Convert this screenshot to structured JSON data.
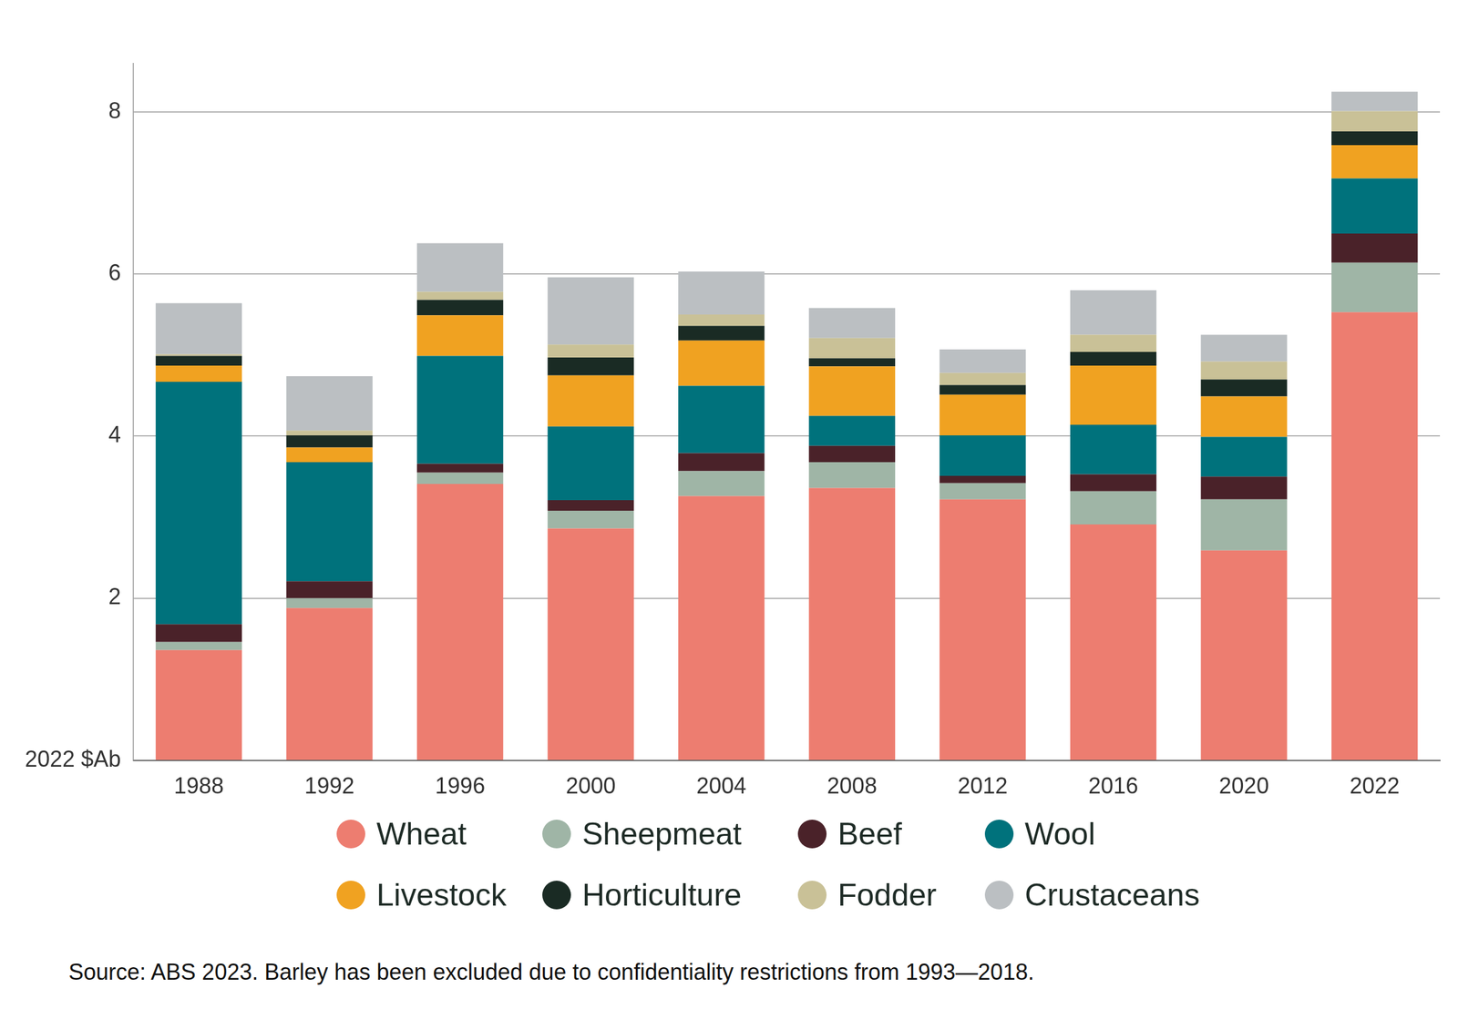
{
  "chart_data": {
    "type": "bar",
    "stacked": true,
    "grid": true,
    "legend": "bottom",
    "caption": "Source: ABS 2023. Barley has been excluded due to confidentiality restrictions from 1993—2018.",
    "categories": [
      "1988",
      "1992",
      "1996",
      "2000",
      "2004",
      "2008",
      "2012",
      "2016",
      "2020",
      "2022"
    ],
    "ylim": [
      0,
      8.6
    ],
    "yticks": [
      {
        "value": 0,
        "label": "2022 $Ab"
      },
      2,
      4,
      6,
      8
    ],
    "series": [
      {
        "name": "Wheat",
        "color": "#ed7d70",
        "values": [
          1.36,
          1.88,
          3.41,
          2.86,
          3.26,
          3.36,
          3.22,
          2.91,
          2.59,
          5.53
        ]
      },
      {
        "name": "Sheepmeat",
        "color": "#9fb5a6",
        "values": [
          0.1,
          0.12,
          0.14,
          0.22,
          0.31,
          0.32,
          0.2,
          0.41,
          0.63,
          0.61
        ]
      },
      {
        "name": "Beef",
        "color": "#4a2229",
        "values": [
          0.22,
          0.21,
          0.11,
          0.13,
          0.22,
          0.2,
          0.09,
          0.21,
          0.28,
          0.36
        ]
      },
      {
        "name": "Wool",
        "color": "#00727c",
        "values": [
          2.99,
          1.47,
          1.33,
          0.91,
          0.83,
          0.37,
          0.5,
          0.61,
          0.49,
          0.68
        ]
      },
      {
        "name": "Livestock",
        "color": "#f0a221",
        "values": [
          0.2,
          0.18,
          0.5,
          0.63,
          0.56,
          0.61,
          0.5,
          0.73,
          0.5,
          0.41
        ]
      },
      {
        "name": "Horticulture",
        "color": "#1a2b24",
        "values": [
          0.12,
          0.15,
          0.19,
          0.22,
          0.18,
          0.1,
          0.12,
          0.17,
          0.21,
          0.17
        ]
      },
      {
        "name": "Fodder",
        "color": "#c9c197",
        "values": [
          0.02,
          0.06,
          0.1,
          0.16,
          0.14,
          0.25,
          0.15,
          0.21,
          0.22,
          0.25
        ]
      },
      {
        "name": "Crustaceans",
        "color": "#bbbfc2",
        "values": [
          0.63,
          0.67,
          0.6,
          0.83,
          0.53,
          0.37,
          0.29,
          0.55,
          0.33,
          0.24
        ]
      }
    ]
  }
}
